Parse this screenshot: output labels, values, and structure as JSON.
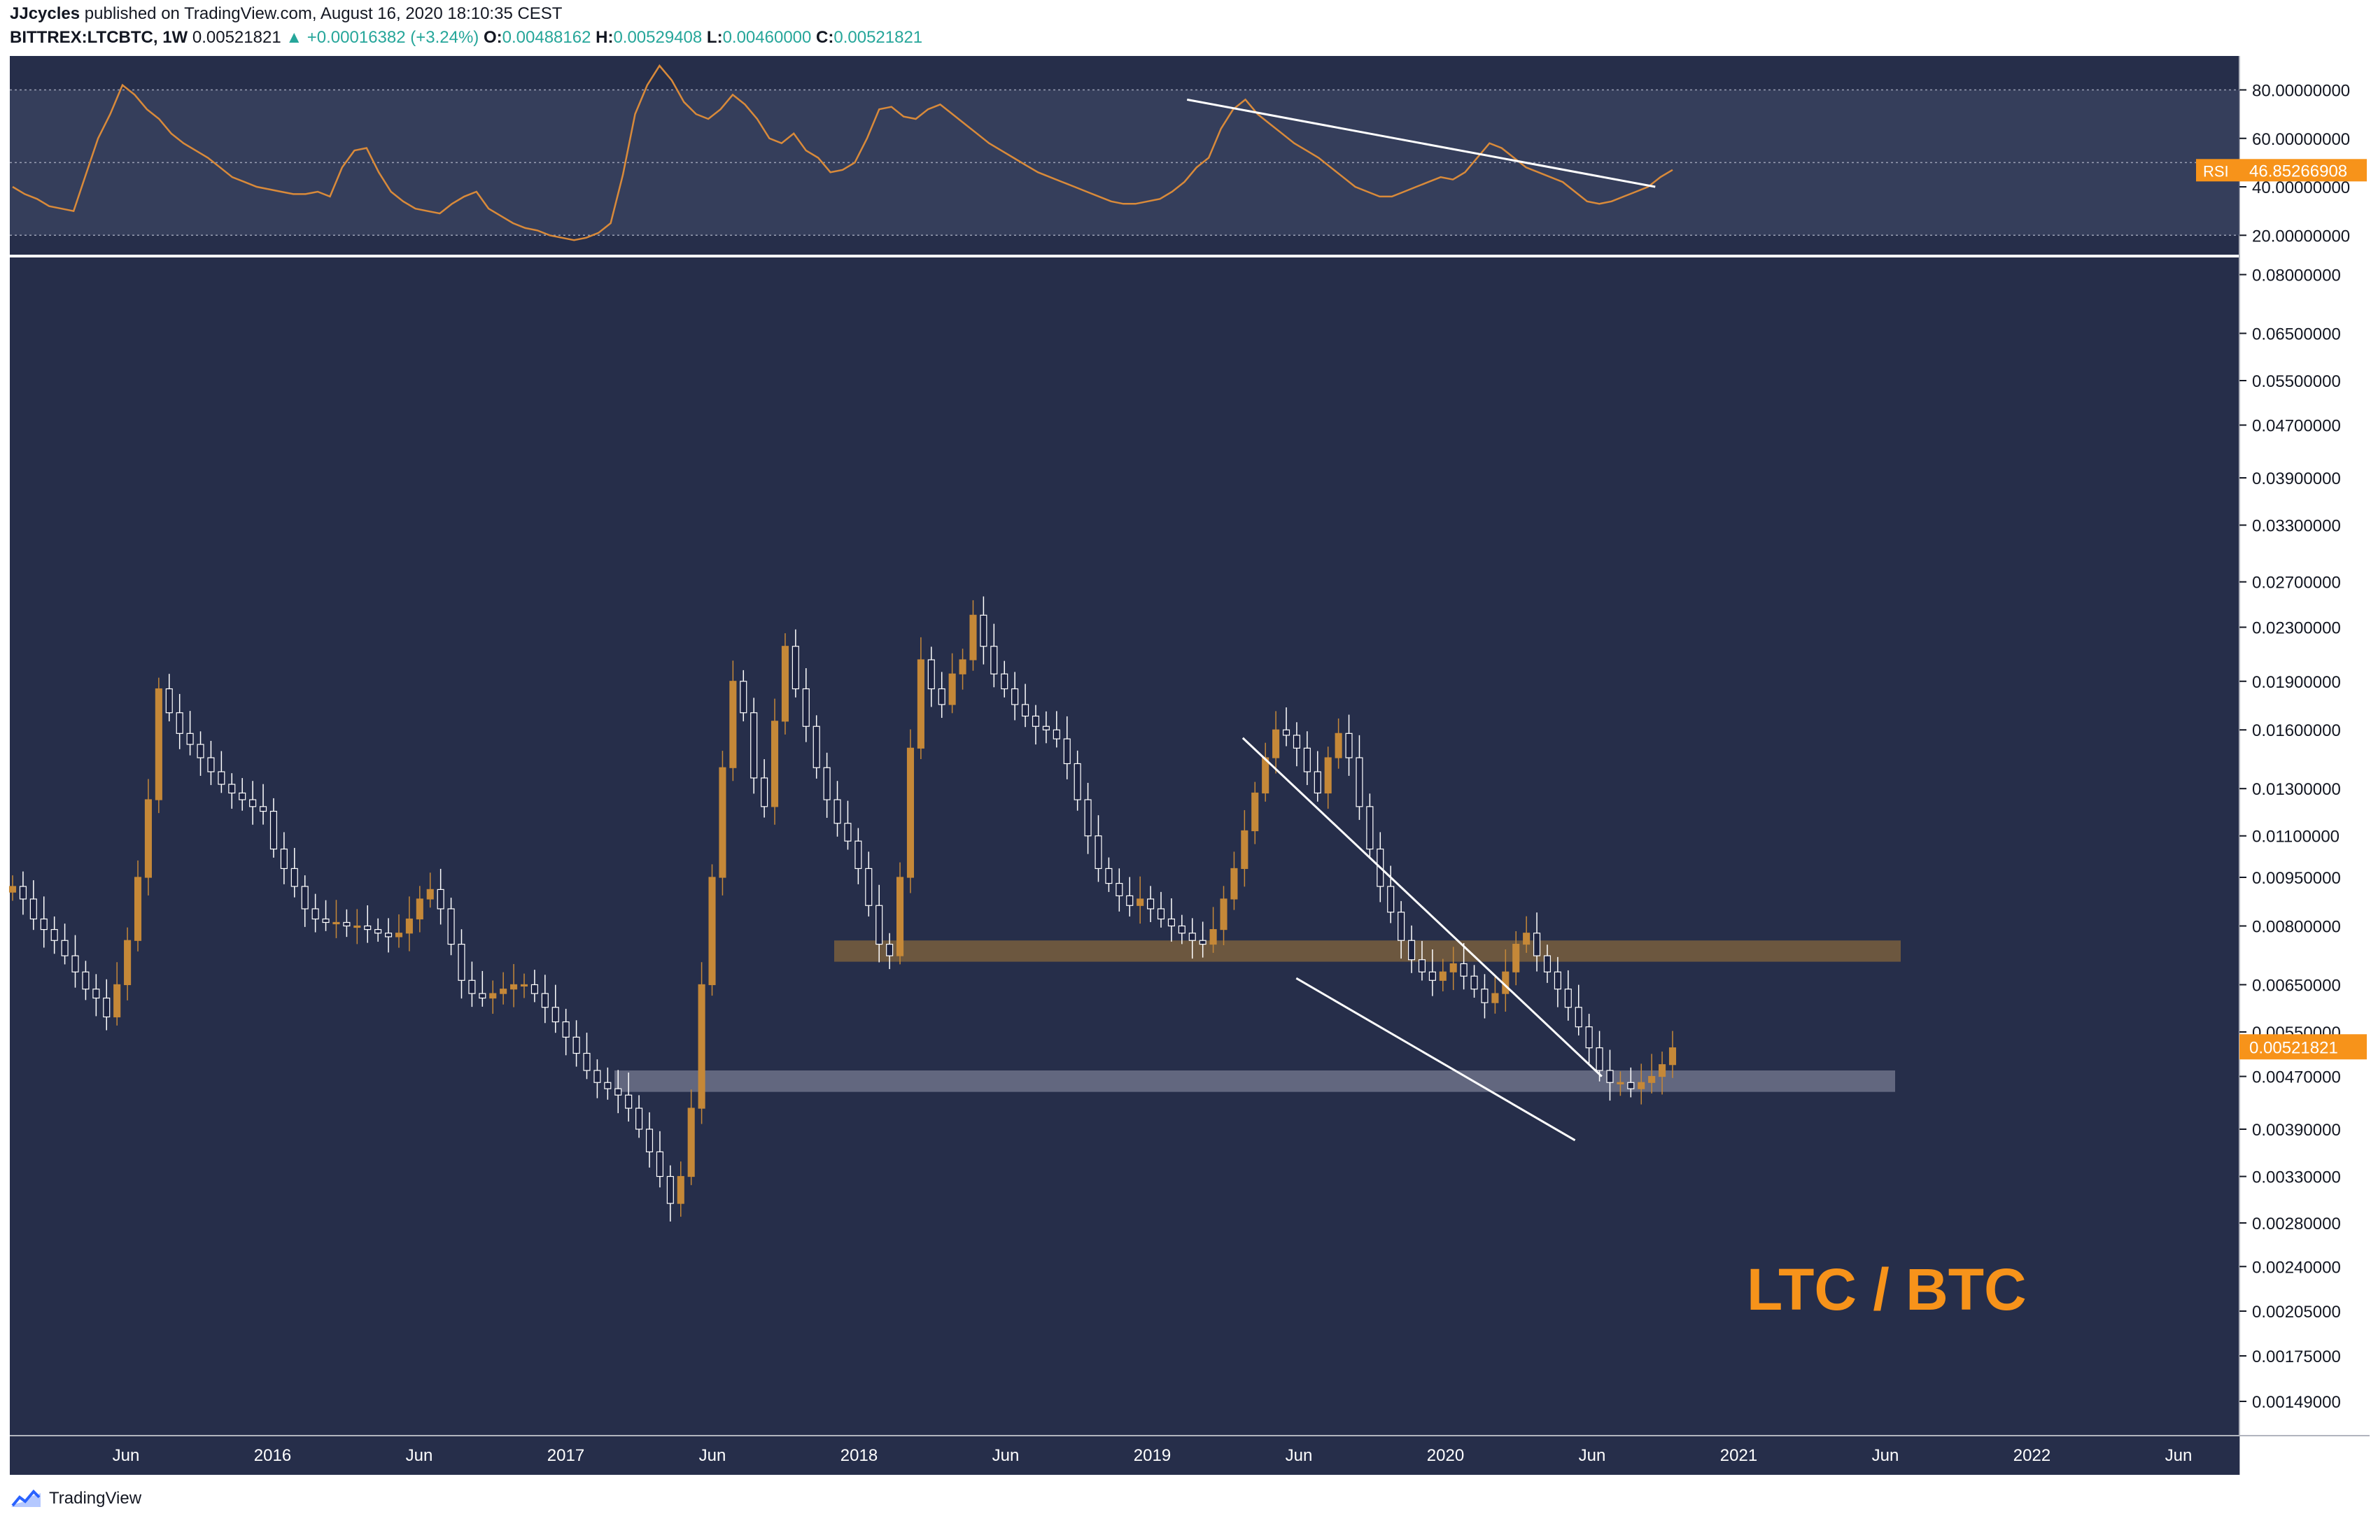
{
  "header": {
    "author": "JJcycles",
    "published_text": "published on TradingView.com, August 16, 2020 18:10:35 CEST",
    "symbol": "BITTREX:LTCBTC, 1W",
    "last": "0.00521821",
    "change": "▲ +0.00016382 (+3.24%)",
    "open_label": "O:",
    "open": "0.00488162",
    "high_label": "H:",
    "high": "0.00529408",
    "low_label": "L:",
    "low": "0.00460000",
    "close_label": "C:",
    "close": "0.00521821"
  },
  "footer": {
    "brand": "TradingView"
  },
  "colors": {
    "background": "#262e4a",
    "band": "#3b4462",
    "up": "#c58838",
    "down": "#ffffff",
    "rsi_line": "#d98a3a",
    "accent": "#f7931a",
    "support_top": "#8a6a3a",
    "support_bottom": "#8a8ea3"
  },
  "chart_data": [
    {
      "type": "line",
      "indicator": "RSI",
      "badge_label": "RSI",
      "badge_value": "46.85266908",
      "ylim": [
        12,
        94
      ],
      "yticks": [
        80,
        60,
        40,
        20
      ],
      "ytick_labels": [
        "80.00000000",
        "60.00000000",
        "40.00000000",
        "20.00000000"
      ],
      "band": [
        20,
        80
      ],
      "dashed_levels": [
        80,
        50,
        20
      ],
      "values": [
        40,
        37,
        35,
        32,
        31,
        30,
        45,
        60,
        70,
        82,
        78,
        72,
        68,
        62,
        58,
        55,
        52,
        48,
        44,
        42,
        40,
        39,
        38,
        37,
        37,
        38,
        36,
        48,
        55,
        56,
        46,
        38,
        34,
        31,
        30,
        29,
        33,
        36,
        38,
        31,
        28,
        25,
        23,
        22,
        20,
        19,
        18,
        19,
        21,
        25,
        45,
        70,
        82,
        90,
        84,
        75,
        70,
        68,
        72,
        78,
        74,
        68,
        60,
        58,
        62,
        55,
        52,
        46,
        47,
        50,
        60,
        72,
        73,
        69,
        68,
        72,
        74,
        70,
        66,
        62,
        58,
        55,
        52,
        49,
        46,
        44,
        42,
        40,
        38,
        36,
        34,
        33,
        33,
        34,
        35,
        38,
        42,
        48,
        52,
        64,
        72,
        76,
        70,
        66,
        62,
        58,
        55,
        52,
        48,
        44,
        40,
        38,
        36,
        36,
        38,
        40,
        42,
        44,
        43,
        46,
        52,
        58,
        56,
        52,
        48,
        46,
        44,
        42,
        38,
        34,
        33,
        34,
        36,
        38,
        40,
        44,
        47
      ],
      "trendline": [
        [
          0.528,
          76
        ],
        [
          0.738,
          40
        ]
      ]
    },
    {
      "type": "candlestick",
      "interval": "1W",
      "scale": "log",
      "ylim": [
        0.00132,
        0.085
      ],
      "yticks": [
        0.08,
        0.065,
        0.055,
        0.047,
        0.039,
        0.033,
        0.027,
        0.023,
        0.019,
        0.016,
        0.013,
        0.011,
        0.0095,
        0.008,
        0.0065,
        0.0055,
        0.0047,
        0.0039,
        0.0033,
        0.0028,
        0.0024,
        0.00205,
        0.00175,
        0.00149
      ],
      "ytick_labels": [
        "0.08000000",
        "0.06500000",
        "0.05500000",
        "0.04700000",
        "0.03900000",
        "0.03300000",
        "0.02700000",
        "0.02300000",
        "0.01900000",
        "0.01600000",
        "0.01300000",
        "0.01100000",
        "0.00950000",
        "0.00800000",
        "0.00650000",
        "0.00550000",
        "0.00470000",
        "0.00390000",
        "0.00330000",
        "0.00280000",
        "0.00240000",
        "0.00205000",
        "0.00175000",
        "0.00149000"
      ],
      "last_price": 0.00521821,
      "last_price_label": "0.00521821",
      "watermark": "LTC / BTC",
      "x_labels": [
        "Jun",
        "2016",
        "Jun",
        "2017",
        "Jun",
        "2018",
        "Jun",
        "2019",
        "Jun",
        "2020",
        "Jun",
        "2021",
        "Jun",
        "2022",
        "Jun"
      ],
      "series": [
        0.0092,
        0.0088,
        0.0082,
        0.0079,
        0.0076,
        0.0072,
        0.0068,
        0.0064,
        0.0062,
        0.0058,
        0.0065,
        0.0076,
        0.0095,
        0.0125,
        0.0185,
        0.017,
        0.0158,
        0.0152,
        0.0145,
        0.0138,
        0.0132,
        0.0128,
        0.0125,
        0.0122,
        0.012,
        0.0105,
        0.0098,
        0.0092,
        0.0085,
        0.0082,
        0.0081,
        0.0081,
        0.008,
        0.008,
        0.0079,
        0.0078,
        0.0077,
        0.0078,
        0.0082,
        0.0088,
        0.0091,
        0.0085,
        0.0075,
        0.0066,
        0.0063,
        0.0062,
        0.0063,
        0.0064,
        0.0065,
        0.0065,
        0.0063,
        0.006,
        0.0057,
        0.0054,
        0.0051,
        0.0048,
        0.0046,
        0.0045,
        0.0044,
        0.0042,
        0.0039,
        0.0036,
        0.0033,
        0.003,
        0.0033,
        0.0042,
        0.0065,
        0.0095,
        0.014,
        0.019,
        0.017,
        0.0135,
        0.0122,
        0.0165,
        0.0215,
        0.0185,
        0.0162,
        0.014,
        0.0125,
        0.0115,
        0.0108,
        0.0098,
        0.0086,
        0.0075,
        0.0072,
        0.0095,
        0.015,
        0.0205,
        0.0185,
        0.0175,
        0.0195,
        0.0205,
        0.024,
        0.0215,
        0.0195,
        0.0185,
        0.0175,
        0.0168,
        0.0162,
        0.016,
        0.0155,
        0.0142,
        0.0125,
        0.011,
        0.0098,
        0.0093,
        0.0089,
        0.0086,
        0.0088,
        0.0085,
        0.0082,
        0.008,
        0.0078,
        0.0076,
        0.0075,
        0.0079,
        0.0088,
        0.0098,
        0.0112,
        0.0128,
        0.0145,
        0.016,
        0.0157,
        0.015,
        0.0138,
        0.0128,
        0.0145,
        0.0158,
        0.0145,
        0.0122,
        0.0105,
        0.0092,
        0.0084,
        0.0076,
        0.0071,
        0.0068,
        0.0066,
        0.0068,
        0.007,
        0.0067,
        0.0064,
        0.0061,
        0.0063,
        0.0068,
        0.0075,
        0.0078,
        0.0072,
        0.0068,
        0.0064,
        0.006,
        0.0056,
        0.0052,
        0.0048,
        0.0046,
        0.0046,
        0.0045,
        0.0046,
        0.0047,
        0.0049,
        0.0052
      ],
      "annotations": {
        "upper_line": [
          [
            0.553,
            0.01555
          ],
          [
            0.714,
            0.0047
          ]
        ],
        "lower_line": [
          [
            0.577,
            0.00665
          ],
          [
            0.702,
            0.00375
          ]
        ],
        "resistance_zone": [
          0.00705,
          0.0076
        ],
        "support_zone": [
          0.00445,
          0.0048
        ]
      }
    }
  ]
}
